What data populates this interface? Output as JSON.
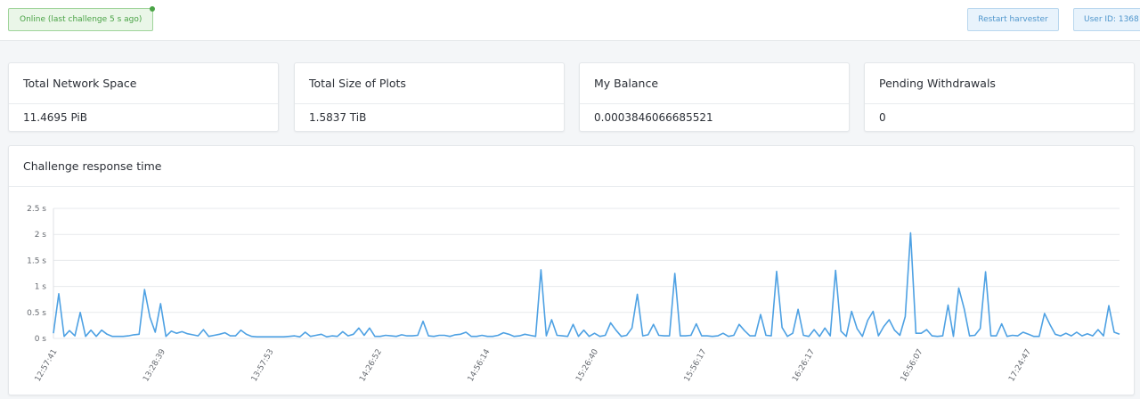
{
  "header": {
    "status_text": "Online (last challenge 5 s ago)",
    "restart_label": "Restart harvester",
    "user_id_label": "User ID: 1368"
  },
  "stats": [
    {
      "title": "Total Network Space",
      "value": "11.4695 PiB"
    },
    {
      "title": "Total Size of Plots",
      "value": "1.5837 TiB"
    },
    {
      "title": "My Balance",
      "value": "0.0003846066685521"
    },
    {
      "title": "Pending Withdrawals",
      "value": "0"
    }
  ],
  "colors": {
    "line": "#4ea1e3",
    "status_green": "#4aa346",
    "button_blue": "#4f96cc"
  },
  "chart_data": {
    "type": "line",
    "title": "Challenge response time",
    "ylabel": "",
    "xlabel": "",
    "ylim": [
      0,
      2.5
    ],
    "y_unit": "s",
    "y_ticks": [
      0,
      0.5,
      1,
      1.5,
      2,
      2.5
    ],
    "y_tick_labels": [
      "0 s",
      "0.5 s",
      "1 s",
      "1.5 s",
      "2 s",
      "2.5 s"
    ],
    "x_tick_labels": [
      "12:57:41",
      "13:28:39",
      "13:57:53",
      "14:26:52",
      "14:56:14",
      "15:26:40",
      "15:56:17",
      "16:26:17",
      "16:56:07",
      "17:24:47"
    ],
    "grid": true,
    "series": [
      {
        "values": [
          0.1,
          0.86,
          0.04,
          0.15,
          0.05,
          0.5,
          0.04,
          0.16,
          0.04,
          0.16,
          0.08,
          0.04,
          0.04,
          0.04,
          0.05,
          0.07,
          0.08,
          0.94,
          0.41,
          0.12,
          0.67,
          0.04,
          0.14,
          0.1,
          0.13,
          0.09,
          0.07,
          0.05,
          0.17,
          0.04,
          0.06,
          0.08,
          0.11,
          0.05,
          0.05,
          0.16,
          0.08,
          0.04,
          0.03,
          0.03,
          0.03,
          0.03,
          0.03,
          0.03,
          0.04,
          0.05,
          0.03,
          0.12,
          0.04,
          0.06,
          0.08,
          0.03,
          0.05,
          0.04,
          0.13,
          0.05,
          0.08,
          0.2,
          0.06,
          0.2,
          0.04,
          0.04,
          0.06,
          0.05,
          0.04,
          0.07,
          0.05,
          0.05,
          0.06,
          0.33,
          0.05,
          0.04,
          0.06,
          0.06,
          0.04,
          0.07,
          0.08,
          0.12,
          0.04,
          0.04,
          0.06,
          0.04,
          0.04,
          0.06,
          0.11,
          0.08,
          0.04,
          0.05,
          0.08,
          0.06,
          0.04,
          1.32,
          0.05,
          0.36,
          0.06,
          0.05,
          0.04,
          0.27,
          0.04,
          0.16,
          0.04,
          0.1,
          0.04,
          0.06,
          0.3,
          0.16,
          0.04,
          0.06,
          0.2,
          0.85,
          0.05,
          0.07,
          0.27,
          0.06,
          0.05,
          0.05,
          1.25,
          0.05,
          0.05,
          0.06,
          0.28,
          0.05,
          0.05,
          0.04,
          0.05,
          0.1,
          0.04,
          0.06,
          0.27,
          0.15,
          0.05,
          0.05,
          0.46,
          0.06,
          0.05,
          1.29,
          0.21,
          0.04,
          0.1,
          0.56,
          0.06,
          0.04,
          0.17,
          0.04,
          0.2,
          0.05,
          1.31,
          0.14,
          0.04,
          0.52,
          0.19,
          0.04,
          0.35,
          0.52,
          0.05,
          0.23,
          0.36,
          0.16,
          0.06,
          0.42,
          2.03,
          0.1,
          0.1,
          0.17,
          0.05,
          0.04,
          0.05,
          0.64,
          0.04,
          0.97,
          0.57,
          0.05,
          0.06,
          0.19,
          1.28,
          0.05,
          0.05,
          0.28,
          0.04,
          0.06,
          0.05,
          0.12,
          0.08,
          0.04,
          0.04,
          0.48,
          0.27,
          0.08,
          0.05,
          0.1,
          0.05,
          0.12,
          0.05,
          0.09,
          0.05,
          0.17,
          0.05,
          0.63,
          0.12,
          0.08
        ]
      }
    ]
  }
}
